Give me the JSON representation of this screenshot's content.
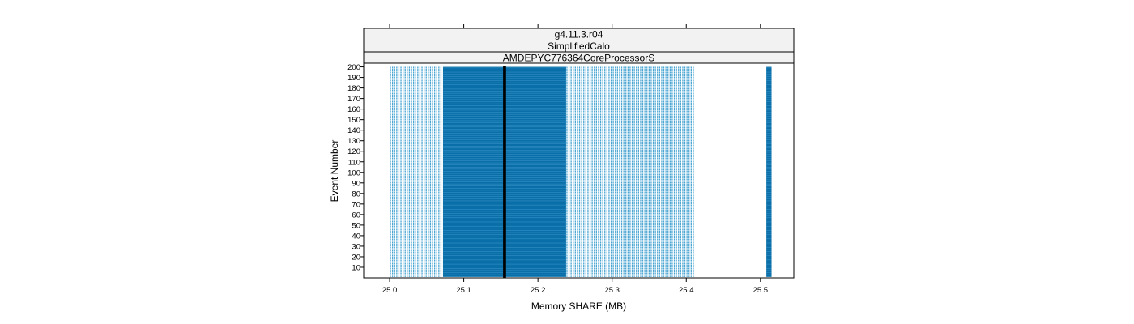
{
  "chart_data": {
    "type": "scatter",
    "strips": [
      "g4.11.3.r04",
      "SimplifiedCalo",
      "AMDEPYC776364CoreProcessorS"
    ],
    "xlabel": "Memory SHARE (MB)",
    "ylabel": "Event Number",
    "xlim": [
      24.965,
      25.545
    ],
    "ylim": [
      0,
      203.5
    ],
    "xticks": [
      25.0,
      25.1,
      25.2,
      25.3,
      25.4,
      25.5
    ],
    "xtick_labels": [
      "25.0",
      "25.1",
      "25.2",
      "25.3",
      "25.4",
      "25.5"
    ],
    "yticks": [
      10,
      20,
      30,
      40,
      50,
      60,
      70,
      80,
      90,
      100,
      110,
      120,
      130,
      140,
      150,
      160,
      170,
      180,
      190,
      200
    ],
    "ytick_labels": [
      "10",
      "20",
      "30",
      "40",
      "50",
      "60",
      "70",
      "80",
      "90",
      "100",
      "110",
      "120",
      "130",
      "140",
      "150",
      "160",
      "170",
      "180",
      "190",
      "200"
    ],
    "events": [
      1,
      200
    ],
    "series": [
      {
        "x_range": [
          25.0,
          25.072
        ],
        "density": "sparse"
      },
      {
        "x_range": [
          25.072,
          25.238
        ],
        "density": "dense"
      },
      {
        "x_range": [
          25.238,
          25.41
        ],
        "density": "sparse"
      },
      {
        "x_range": [
          25.153,
          25.157
        ],
        "density": "solid"
      },
      {
        "x_range": [
          25.508,
          25.515
        ],
        "density": "dense"
      }
    ],
    "colors": {
      "point": "#0080c0",
      "dense": "#0a6fa8",
      "solid": "#000000",
      "strip_bg": "#f2f2f2"
    },
    "grid": false,
    "legend": "none"
  }
}
